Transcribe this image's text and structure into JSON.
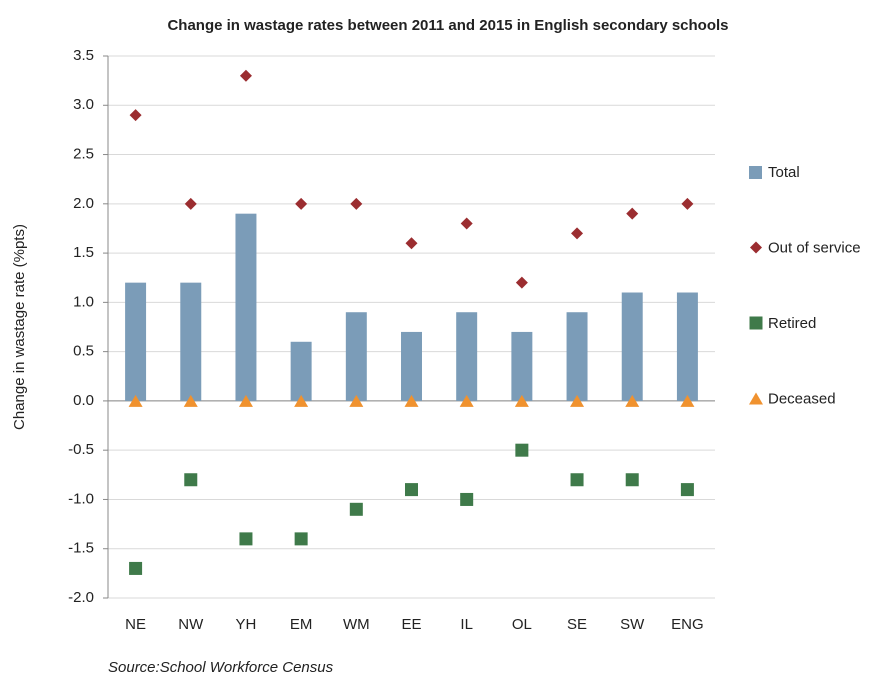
{
  "chart_data": {
    "type": "bar",
    "title": "Change in wastage rates between 2011 and 2015 in English secondary schools",
    "y_label": "Change in wastage rate (%pts)",
    "source": "Source:School Workforce Census",
    "categories": [
      "NE",
      "NW",
      "YH",
      "EM",
      "WM",
      "EE",
      "IL",
      "OL",
      "SE",
      "SW",
      "ENG"
    ],
    "series": [
      {
        "name": "Total",
        "color": "#7b9cb8",
        "marker": "bar",
        "values": [
          1.2,
          1.2,
          1.9,
          0.6,
          0.9,
          0.7,
          0.9,
          0.7,
          0.9,
          1.1,
          1.1
        ]
      },
      {
        "name": "Out of service",
        "color": "#9b2d30",
        "marker": "diamond",
        "values": [
          2.9,
          2.0,
          3.3,
          2.0,
          2.0,
          1.6,
          1.8,
          1.2,
          1.7,
          1.9,
          2.0
        ]
      },
      {
        "name": "Retired",
        "color": "#3f7a4a",
        "marker": "square",
        "values": [
          -1.7,
          -0.8,
          -1.4,
          -1.4,
          -1.1,
          -0.9,
          -1.0,
          -0.5,
          -0.8,
          -0.8,
          -0.9
        ]
      },
      {
        "name": "Deceased",
        "color": "#f0922f",
        "marker": "triangle",
        "values": [
          0,
          0,
          0,
          0,
          0,
          0,
          0,
          0,
          0,
          0,
          0
        ]
      }
    ],
    "ylim": [
      -2,
      3.5
    ],
    "yticks": [
      {
        "value": -2,
        "label": "-2.0"
      },
      -1.5,
      {
        "value": -1,
        "label": "-1.0"
      },
      -0.5,
      {
        "value": 0,
        "label": "0.0"
      },
      0.5,
      {
        "value": 1,
        "label": "1.0"
      },
      1.5,
      {
        "value": 2,
        "label": "2.0"
      },
      2.5,
      {
        "value": 3,
        "label": "3.0"
      },
      3.5
    ],
    "grid": true,
    "legend": "right"
  }
}
